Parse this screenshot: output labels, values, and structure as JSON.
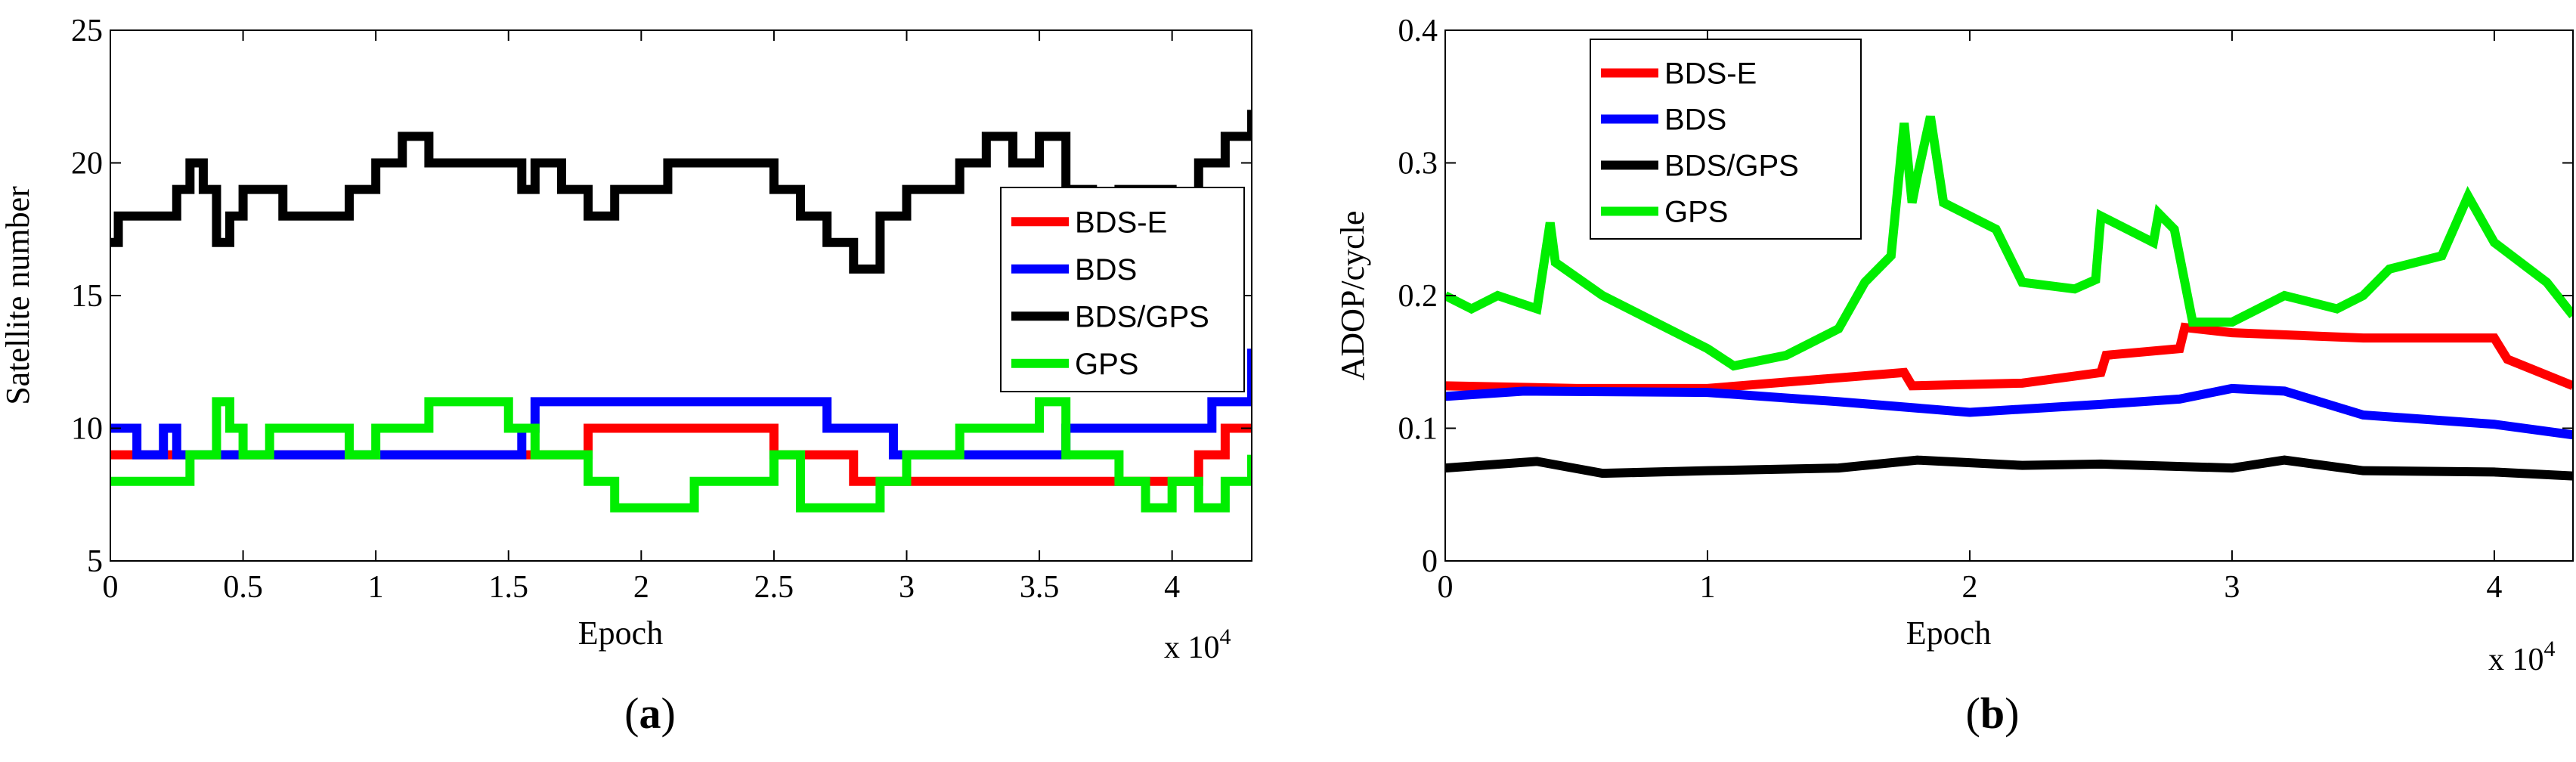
{
  "colors": {
    "BDS-E": "#ff0000",
    "BDS": "#0000ff",
    "BDS/GPS": "#000000",
    "GPS": "#00ee00"
  },
  "chart_data": [
    {
      "id": "a",
      "caption_letter": "a",
      "type": "line",
      "xlabel": "Epoch",
      "ylabel": "Satellite number",
      "x_multiplier_label": "x 10",
      "x_multiplier_exp": "4",
      "xlim": [
        0,
        4.3
      ],
      "ylim": [
        5,
        25
      ],
      "xticks": [
        0,
        0.5,
        1,
        1.5,
        2,
        2.5,
        3,
        3.5,
        4
      ],
      "xtick_labels": [
        "0",
        "0.5",
        "1",
        "1.5",
        "2",
        "2.5",
        "3",
        "3.5",
        "4"
      ],
      "yticks": [
        5,
        10,
        15,
        20,
        25
      ],
      "ytick_labels": [
        "5",
        "10",
        "15",
        "20",
        "25"
      ],
      "legend": [
        "BDS-E",
        "BDS",
        "BDS/GPS",
        "GPS"
      ],
      "legend_location": "middle-right",
      "step": true,
      "series": [
        {
          "name": "BDS-E",
          "x": [
            0,
            0.25,
            0.5,
            0.6,
            1.0,
            1.55,
            1.8,
            2.0,
            2.5,
            2.8,
            3.0,
            3.5,
            3.7,
            4.0,
            4.1,
            4.2,
            4.3
          ],
          "y": [
            9,
            9,
            9,
            9,
            9,
            9,
            10,
            10,
            9,
            8,
            8,
            8,
            8,
            8,
            9,
            10,
            10
          ]
        },
        {
          "name": "BDS",
          "x": [
            0,
            0.1,
            0.2,
            0.25,
            0.5,
            1.0,
            1.55,
            1.6,
            2.0,
            2.5,
            2.7,
            2.95,
            3.0,
            3.4,
            3.6,
            3.9,
            4.15,
            4.3
          ],
          "y": [
            10,
            9,
            10,
            9,
            9,
            9,
            10,
            11,
            11,
            11,
            10,
            9,
            9,
            9,
            10,
            10,
            11,
            13
          ]
        },
        {
          "name": "BDS/GPS",
          "x": [
            0,
            0.03,
            0.25,
            0.3,
            0.35,
            0.4,
            0.45,
            0.5,
            0.65,
            0.9,
            1.0,
            1.1,
            1.2,
            1.4,
            1.55,
            1.6,
            1.7,
            1.8,
            1.9,
            2.0,
            2.1,
            2.3,
            2.5,
            2.6,
            2.7,
            2.8,
            2.9,
            3.0,
            3.1,
            3.2,
            3.3,
            3.4,
            3.5,
            3.6,
            3.7,
            3.8,
            3.9,
            4.0,
            4.1,
            4.2,
            4.3
          ],
          "y": [
            17,
            18,
            19,
            20,
            19,
            17,
            18,
            19,
            18,
            19,
            20,
            21,
            20,
            20,
            19,
            20,
            19,
            18,
            19,
            19,
            20,
            20,
            19,
            18,
            17,
            16,
            18,
            19,
            19,
            20,
            21,
            20,
            21,
            19,
            18,
            19,
            19,
            18,
            20,
            21,
            22
          ]
        },
        {
          "name": "GPS",
          "x": [
            0,
            0.3,
            0.4,
            0.45,
            0.5,
            0.6,
            0.9,
            1.0,
            1.2,
            1.5,
            1.6,
            1.8,
            1.9,
            2.2,
            2.5,
            2.6,
            2.9,
            3.0,
            3.2,
            3.5,
            3.6,
            3.8,
            3.9,
            4.0,
            4.1,
            4.2,
            4.3
          ],
          "y": [
            8,
            9,
            11,
            10,
            9,
            10,
            9,
            10,
            11,
            10,
            9,
            8,
            7,
            8,
            9,
            7,
            8,
            9,
            10,
            11,
            9,
            8,
            7,
            8,
            7,
            8,
            9
          ]
        }
      ]
    },
    {
      "id": "b",
      "caption_letter": "b",
      "type": "line",
      "xlabel": "Epoch",
      "ylabel": "ADOP/cycle",
      "x_multiplier_label": "x 10",
      "x_multiplier_exp": "4",
      "xlim": [
        0,
        4.3
      ],
      "ylim": [
        0,
        0.4
      ],
      "xticks": [
        0,
        1,
        2,
        3,
        4
      ],
      "xtick_labels": [
        "0",
        "1",
        "2",
        "3",
        "4"
      ],
      "yticks": [
        0,
        0.1,
        0.2,
        0.3,
        0.4
      ],
      "ytick_labels": [
        "0",
        "0.1",
        "0.2",
        "0.3",
        "0.4"
      ],
      "legend": [
        "BDS-E",
        "BDS",
        "BDS/GPS",
        "GPS"
      ],
      "legend_location": "top-left",
      "step": false,
      "series": [
        {
          "name": "BDS-E",
          "x": [
            0,
            0.5,
            1.0,
            1.5,
            1.75,
            1.78,
            2.2,
            2.5,
            2.52,
            2.8,
            2.82,
            3.0,
            3.5,
            4.0,
            4.05,
            4.3
          ],
          "y": [
            0.132,
            0.13,
            0.13,
            0.138,
            0.142,
            0.132,
            0.134,
            0.142,
            0.155,
            0.16,
            0.176,
            0.172,
            0.168,
            0.168,
            0.152,
            0.132
          ]
        },
        {
          "name": "BDS",
          "x": [
            0,
            0.3,
            1.0,
            1.5,
            2.0,
            2.5,
            2.8,
            3.0,
            3.2,
            3.5,
            4.0,
            4.3
          ],
          "y": [
            0.124,
            0.128,
            0.127,
            0.12,
            0.112,
            0.118,
            0.122,
            0.13,
            0.128,
            0.11,
            0.103,
            0.095
          ]
        },
        {
          "name": "BDS/GPS",
          "x": [
            0,
            0.35,
            0.6,
            1.0,
            1.5,
            1.8,
            2.2,
            2.5,
            3.0,
            3.2,
            3.5,
            4.0,
            4.3
          ],
          "y": [
            0.07,
            0.075,
            0.066,
            0.068,
            0.07,
            0.076,
            0.072,
            0.073,
            0.07,
            0.076,
            0.068,
            0.067,
            0.064
          ]
        },
        {
          "name": "GPS",
          "x": [
            0,
            0.1,
            0.2,
            0.35,
            0.4,
            0.42,
            0.6,
            1.0,
            1.1,
            1.3,
            1.5,
            1.6,
            1.7,
            1.75,
            1.78,
            1.8,
            1.85,
            1.9,
            2.1,
            2.2,
            2.4,
            2.48,
            2.5,
            2.7,
            2.72,
            2.78,
            2.85,
            3.0,
            3.2,
            3.4,
            3.5,
            3.6,
            3.8,
            3.9,
            4.0,
            4.2,
            4.3
          ],
          "y": [
            0.2,
            0.19,
            0.2,
            0.19,
            0.255,
            0.225,
            0.2,
            0.16,
            0.147,
            0.155,
            0.175,
            0.21,
            0.23,
            0.33,
            0.27,
            0.29,
            0.335,
            0.27,
            0.25,
            0.21,
            0.205,
            0.212,
            0.26,
            0.24,
            0.262,
            0.25,
            0.18,
            0.18,
            0.2,
            0.19,
            0.2,
            0.22,
            0.23,
            0.275,
            0.24,
            0.21,
            0.185
          ]
        }
      ]
    }
  ]
}
